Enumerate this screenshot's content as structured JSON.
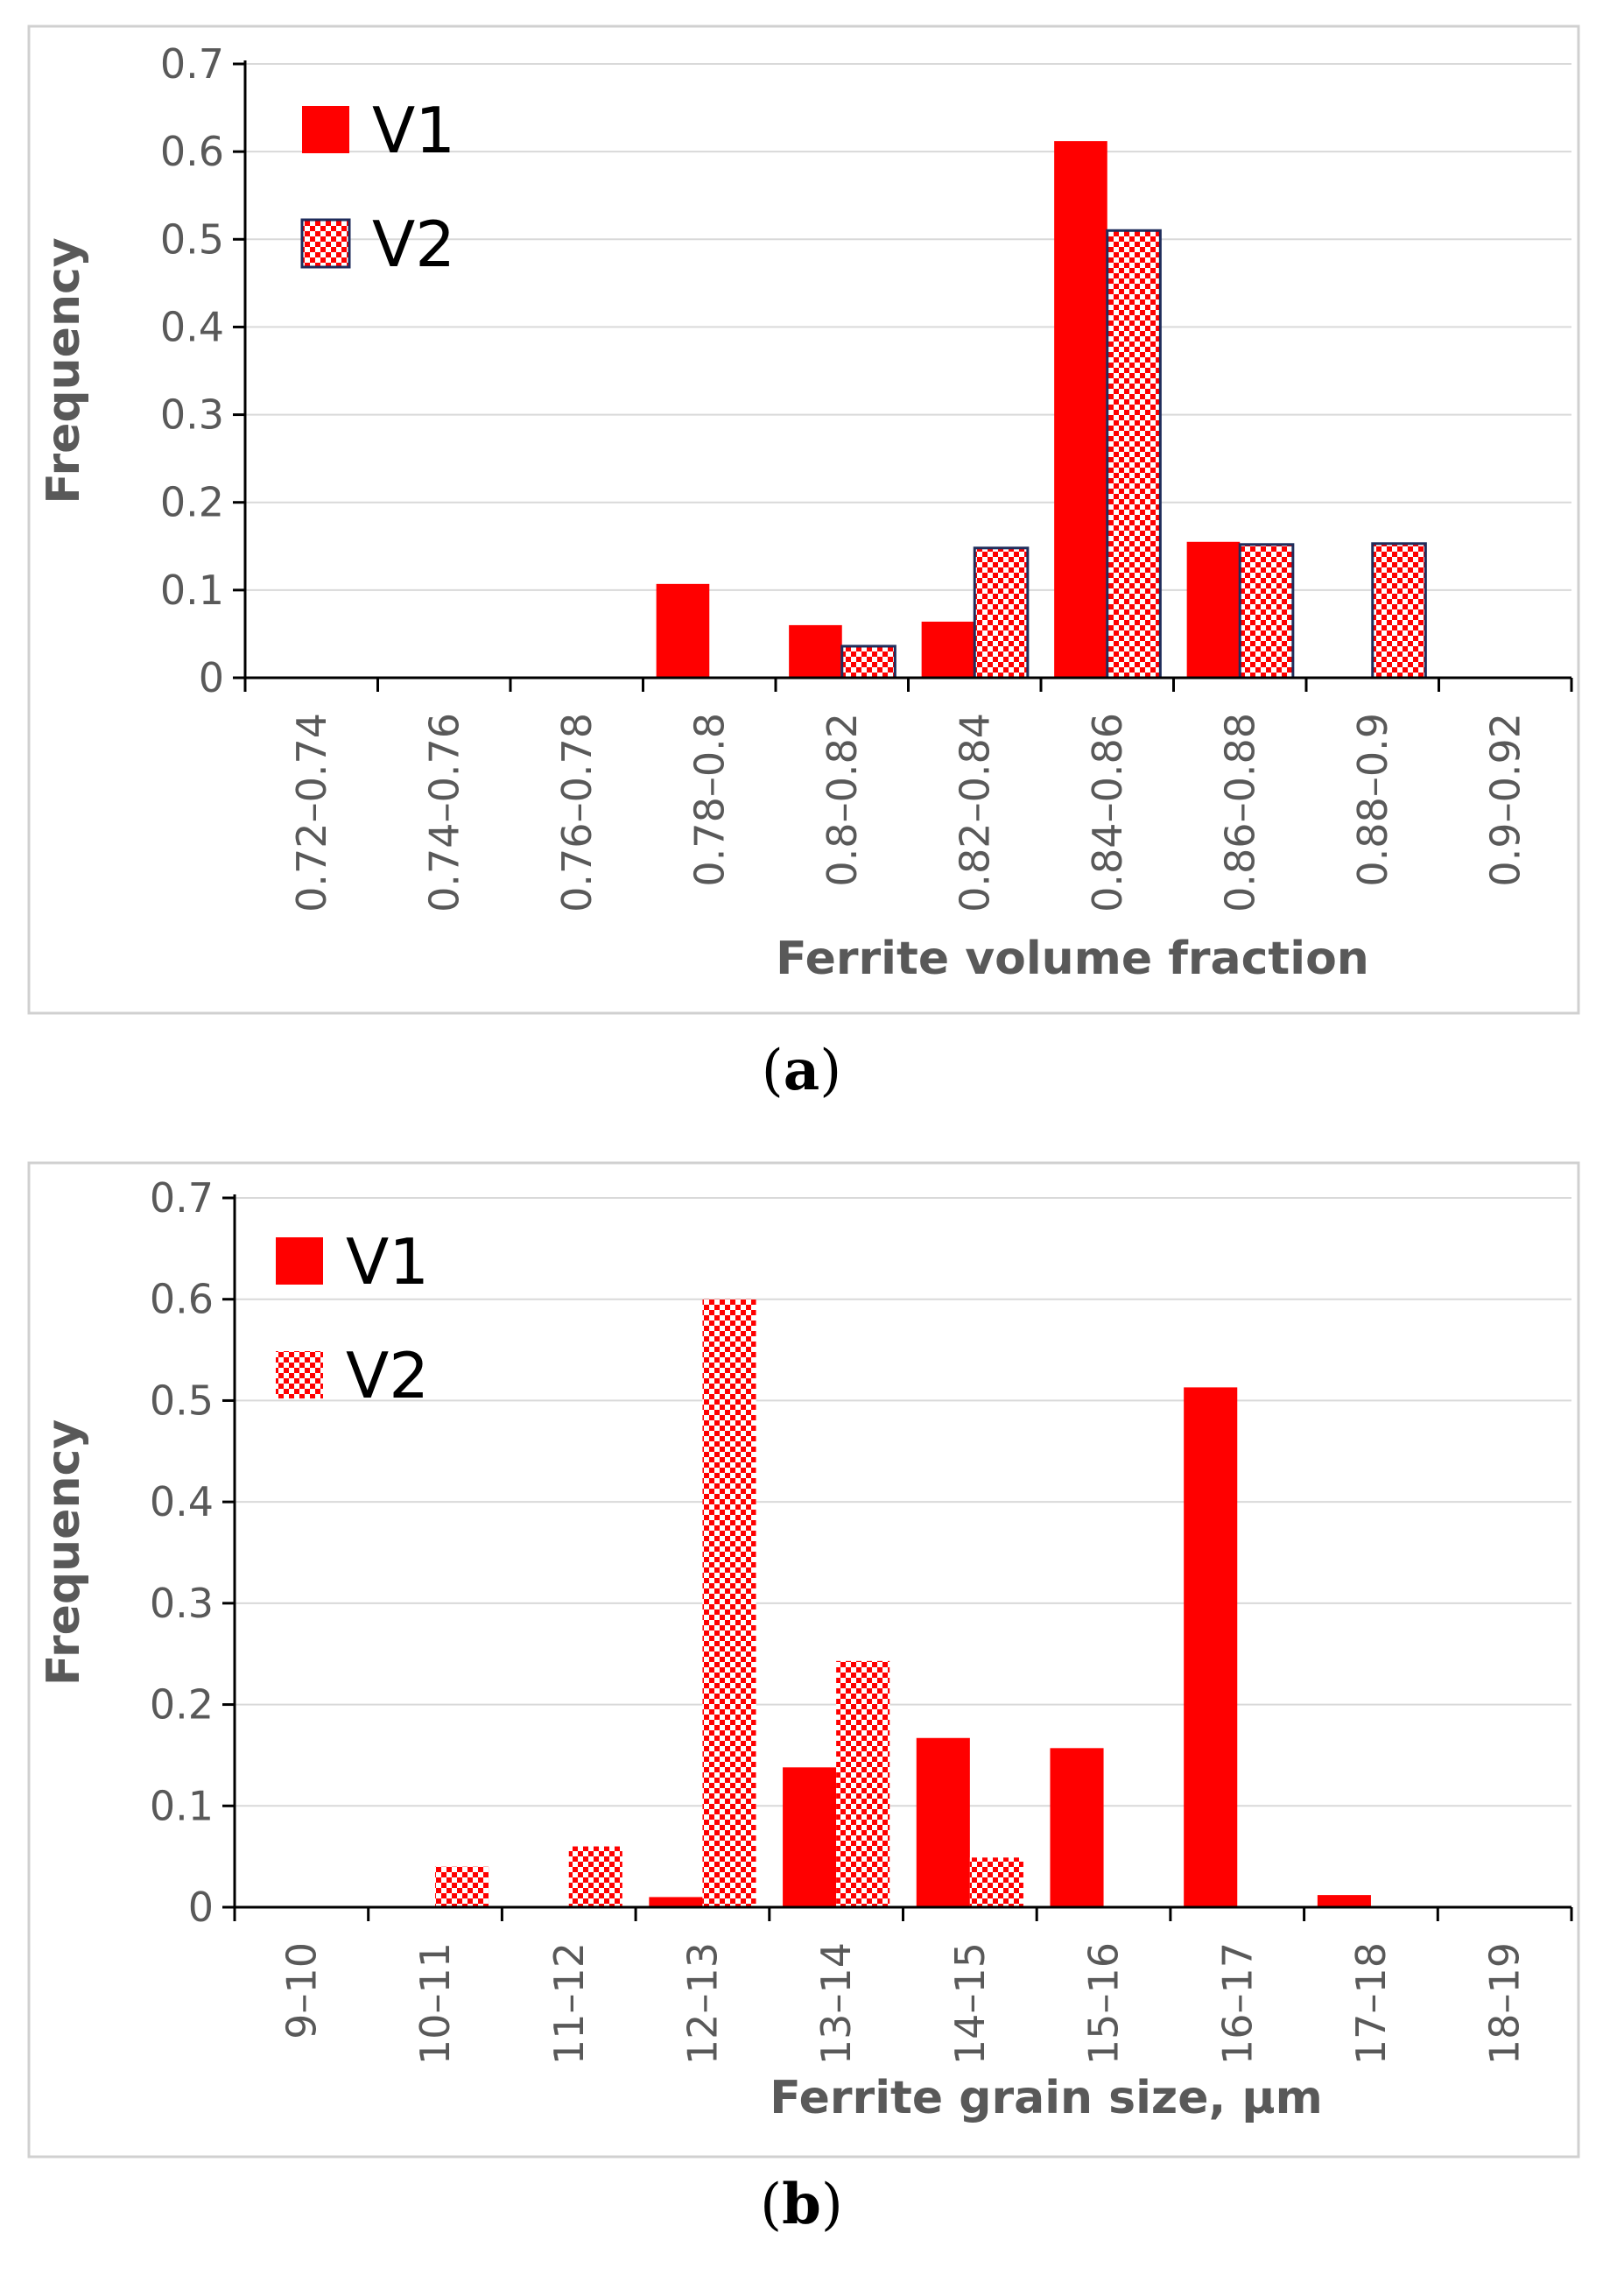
{
  "chart_data": [
    {
      "type": "bar",
      "panel_label": "a",
      "xlabel": "Ferrite volume fraction",
      "ylabel": "Frequency",
      "ylim": [
        0,
        0.7
      ],
      "yticks": [
        "0",
        "0.1",
        "0.2",
        "0.3",
        "0.4",
        "0.5",
        "0.6",
        "0.7"
      ],
      "categories": [
        "0.72–0.74",
        "0.74–0.76",
        "0.76–0.78",
        "0.78–0.8",
        "0.8–0.82",
        "0.82–0.84",
        "0.84–0.86",
        "0.86–0.88",
        "0.88–0.9",
        "0.9–0.92"
      ],
      "series": [
        {
          "name": "V1",
          "values": [
            0,
            0,
            0,
            0.107,
            0.06,
            0.064,
            0.612,
            0.155,
            0,
            0
          ]
        },
        {
          "name": "V2",
          "values": [
            0,
            0,
            0,
            0,
            0.036,
            0.148,
            0.51,
            0.152,
            0.153,
            0
          ]
        }
      ],
      "grid": true,
      "legend": "top-left"
    },
    {
      "type": "bar",
      "panel_label": "b",
      "xlabel": "Ferrite grain size, μm",
      "ylabel": "Frequency",
      "ylim": [
        0,
        0.7
      ],
      "yticks": [
        "0",
        "0.1",
        "0.2",
        "0.3",
        "0.4",
        "0.5",
        "0.6",
        "0.7"
      ],
      "categories": [
        "9–10",
        "10–11",
        "11–12",
        "12–13",
        "13–14",
        "14–15",
        "15–16",
        "16–17",
        "17–18",
        "18–19"
      ],
      "series": [
        {
          "name": "V1",
          "values": [
            0,
            0,
            0,
            0.01,
            0.138,
            0.167,
            0.157,
            0.513,
            0.012,
            0
          ]
        },
        {
          "name": "V2",
          "values": [
            0,
            0.04,
            0.06,
            0.6,
            0.243,
            0.049,
            0,
            0,
            0,
            0
          ]
        }
      ],
      "grid": true,
      "legend": "top-left"
    }
  ],
  "colors": {
    "v1": "#ff0000",
    "v2_check": "#ff0000",
    "v2_bg": "#ffffff",
    "v2_outline_a": "#1f2d5c",
    "grid": "#d9d9d9",
    "axis": "#000000",
    "frame": "#d0d0d0"
  }
}
